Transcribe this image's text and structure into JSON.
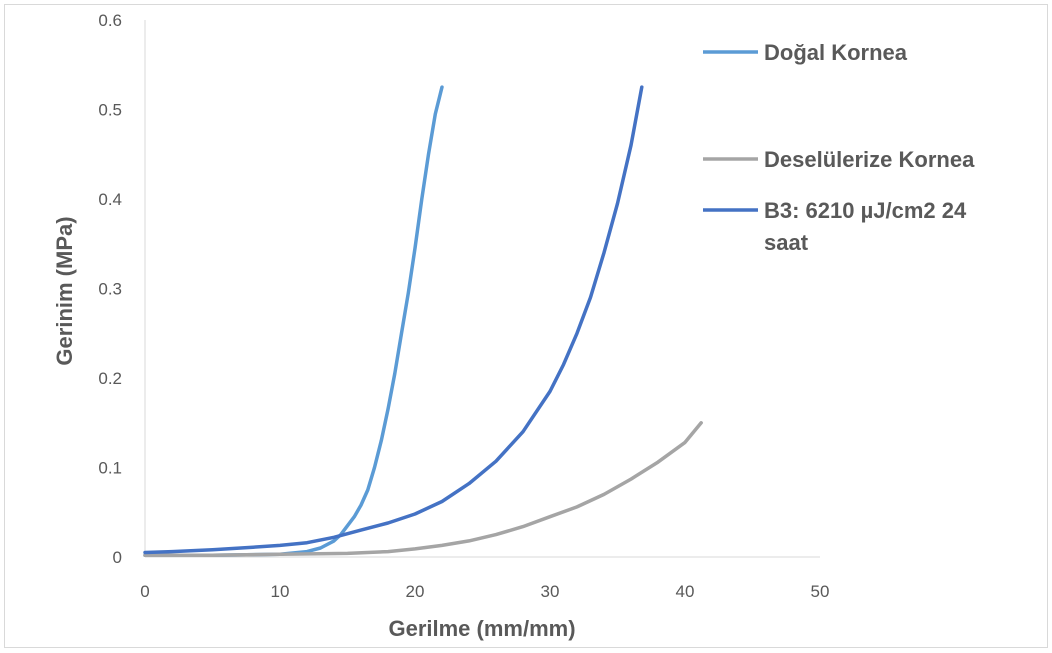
{
  "chart_data": {
    "type": "line",
    "title": "",
    "xlabel": "Gerilme (mm/mm)",
    "ylabel": "Gerinim (MPa)",
    "xlim": [
      0,
      50
    ],
    "ylim": [
      0,
      0.6
    ],
    "x_ticks": [
      "0",
      "10",
      "20",
      "30",
      "40",
      "50"
    ],
    "y_ticks": [
      "0",
      "0.1",
      "0.2",
      "0.3",
      "0.4",
      "0.5",
      "0.6"
    ],
    "grid": false,
    "legend_position": "right",
    "series": [
      {
        "name": "Doğal Kornea",
        "color": "#5b9bd5",
        "x": [
          0,
          5,
          10,
          12,
          13,
          14,
          14.5,
          15,
          15.5,
          16,
          16.5,
          17,
          17.5,
          18,
          18.5,
          19,
          19.5,
          20,
          20.5,
          21,
          21.5,
          22
        ],
        "y": [
          0.002,
          0.002,
          0.003,
          0.006,
          0.01,
          0.018,
          0.025,
          0.035,
          0.045,
          0.058,
          0.075,
          0.1,
          0.13,
          0.165,
          0.205,
          0.25,
          0.295,
          0.345,
          0.4,
          0.45,
          0.495,
          0.525
        ]
      },
      {
        "name": "Deselülerize Kornea",
        "color": "#a5a5a5",
        "x": [
          0,
          5,
          10,
          15,
          18,
          20,
          22,
          24,
          26,
          28,
          30,
          32,
          34,
          36,
          38,
          40,
          41.2
        ],
        "y": [
          0.002,
          0.002,
          0.003,
          0.004,
          0.006,
          0.009,
          0.013,
          0.018,
          0.025,
          0.034,
          0.045,
          0.056,
          0.07,
          0.087,
          0.106,
          0.128,
          0.15
        ]
      },
      {
        "name": "B3: 6210 µJ/cm2 24 saat",
        "color": "#4472c4",
        "x": [
          0,
          2,
          5,
          8,
          10,
          12,
          14,
          16,
          18,
          20,
          22,
          24,
          26,
          28,
          30,
          31,
          32,
          33,
          34,
          35,
          36,
          36.8
        ],
        "y": [
          0.005,
          0.006,
          0.008,
          0.011,
          0.013,
          0.016,
          0.022,
          0.03,
          0.038,
          0.048,
          0.062,
          0.082,
          0.107,
          0.14,
          0.185,
          0.215,
          0.25,
          0.29,
          0.34,
          0.395,
          0.46,
          0.525
        ]
      }
    ]
  }
}
